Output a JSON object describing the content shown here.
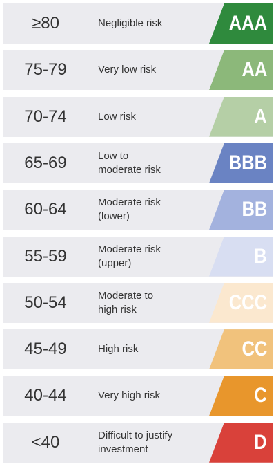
{
  "rows": [
    {
      "range": "≥80",
      "description": [
        "Negligible risk"
      ],
      "rating": "AAA",
      "color": "#2f8a3d"
    },
    {
      "range": "75-79",
      "description": [
        "Very low risk"
      ],
      "rating": "AA",
      "color": "#8cb87a"
    },
    {
      "range": "70-74",
      "description": [
        "Low risk"
      ],
      "rating": "A",
      "color": "#b5cfa6"
    },
    {
      "range": "65-69",
      "description": [
        "Low to",
        "moderate risk"
      ],
      "rating": "BBB",
      "color": "#6a83c3"
    },
    {
      "range": "60-64",
      "description": [
        "Moderate risk",
        "(lower)"
      ],
      "rating": "BB",
      "color": "#a3b2de"
    },
    {
      "range": "55-59",
      "description": [
        "Moderate risk",
        "(upper)"
      ],
      "rating": "B",
      "color": "#d8def2"
    },
    {
      "range": "50-54",
      "description": [
        "Moderate to",
        "high risk"
      ],
      "rating": "CCC",
      "color": "#fbe8cf"
    },
    {
      "range": "45-49",
      "description": [
        "High risk"
      ],
      "rating": "CC",
      "color": "#f1c27c"
    },
    {
      "range": "40-44",
      "description": [
        "Very high risk"
      ],
      "rating": "C",
      "color": "#e8962c"
    },
    {
      "range": "<40",
      "description": [
        "Difficult to justify",
        "investment"
      ],
      "rating": "D",
      "color": "#d9413a"
    }
  ]
}
